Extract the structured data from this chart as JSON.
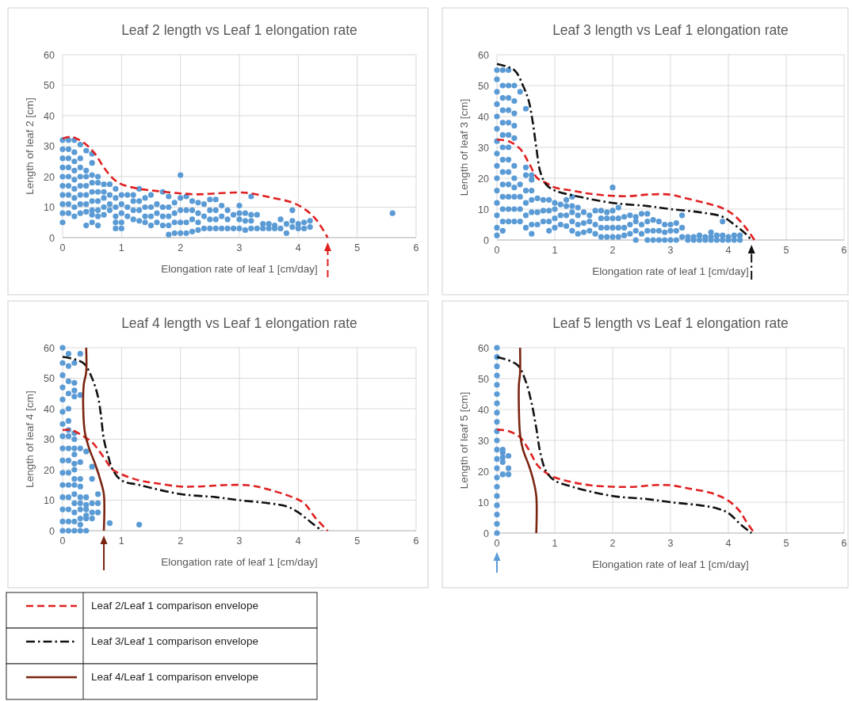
{
  "chart_data": [
    {
      "type": "scatter",
      "title": "Leaf 2 length vs Leaf 1 elongation rate",
      "xlabel": "Elongation rate of leaf 1 [cm/day]",
      "ylabel": "Length of leaf 2 [cm]",
      "xlim": [
        0,
        6
      ],
      "ylim": [
        0,
        60
      ],
      "xticks": [
        0,
        1,
        2,
        3,
        4,
        5,
        6
      ],
      "yticks": [
        0,
        10,
        20,
        30,
        40,
        50,
        60
      ],
      "grid": true,
      "series": [
        {
          "marker": "circle",
          "color": "#5b9bd5",
          "x": [
            0,
            0,
            0,
            0,
            0,
            0,
            0,
            0,
            0,
            0,
            0.1,
            0.1,
            0.1,
            0.1,
            0.1,
            0.1,
            0.1,
            0.1,
            0.1,
            0.2,
            0.2,
            0.2,
            0.2,
            0.2,
            0.2,
            0.2,
            0.2,
            0.2,
            0.3,
            0.3,
            0.3,
            0.3,
            0.3,
            0.3,
            0.3,
            0.3,
            0.4,
            0.4,
            0.4,
            0.4,
            0.4,
            0.4,
            0.4,
            0.4,
            0.5,
            0.5,
            0.5,
            0.5,
            0.5,
            0.5,
            0.5,
            0.5,
            0.5,
            0.6,
            0.6,
            0.6,
            0.6,
            0.6,
            0.6,
            0.6,
            0.7,
            0.7,
            0.7,
            0.7,
            0.7,
            0.8,
            0.8,
            0.8,
            0.8,
            0.9,
            0.9,
            0.9,
            0.9,
            0.9,
            0.9,
            1,
            1,
            1,
            1,
            1,
            1.1,
            1.1,
            1.1,
            1.2,
            1.2,
            1.2,
            1.2,
            1.3,
            1.3,
            1.3,
            1.3,
            1.4,
            1.4,
            1.4,
            1.4,
            1.5,
            1.5,
            1.5,
            1.5,
            1.6,
            1.6,
            1.6,
            1.7,
            1.7,
            1.7,
            1.7,
            1.8,
            1.8,
            1.8,
            1.8,
            1.8,
            1.9,
            1.9,
            1.9,
            1.9,
            2,
            2,
            2,
            2,
            2,
            2.1,
            2.1,
            2.1,
            2.1,
            2.2,
            2.2,
            2.2,
            2.2,
            2.3,
            2.3,
            2.3,
            2.3,
            2.4,
            2.4,
            2.4,
            2.5,
            2.5,
            2.5,
            2.5,
            2.6,
            2.6,
            2.6,
            2.6,
            2.7,
            2.7,
            2.7,
            2.8,
            2.8,
            2.8,
            2.9,
            2.9,
            3,
            3,
            3,
            3,
            3.1,
            3.1,
            3.1,
            3.2,
            3.2,
            3.2,
            3.2,
            3.3,
            3.3,
            3.4,
            3.4,
            3.5,
            3.5,
            3.6,
            3.6,
            3.7,
            3.7,
            3.8,
            3.8,
            3.9,
            3.9,
            3.9,
            4,
            4,
            4.1,
            4.1,
            4.2,
            4.2,
            5.6
          ],
          "values": [
            5,
            8,
            11,
            14,
            17,
            20,
            23,
            26,
            29,
            32,
            8,
            11,
            14,
            17,
            20,
            23,
            26,
            29,
            32,
            7,
            10,
            13,
            16,
            19,
            22,
            25,
            28,
            32,
            8,
            11,
            14,
            17,
            20,
            23,
            26,
            30.5,
            4,
            8.5,
            11,
            14,
            17,
            20,
            22,
            28.5,
            5,
            7.5,
            9,
            12,
            15,
            18,
            20.5,
            24.5,
            27.5,
            4,
            7,
            9,
            12,
            15,
            18,
            20,
            7.5,
            10,
            13,
            15,
            17.5,
            9,
            11,
            14,
            17.5,
            3,
            5,
            7,
            10,
            13,
            16,
            3,
            5,
            8,
            11,
            14,
            7,
            10,
            14,
            6,
            9,
            12,
            14,
            5.5,
            9,
            12,
            16,
            5,
            7,
            10,
            13,
            4,
            7,
            10,
            14,
            5,
            8,
            11,
            4,
            7,
            10,
            15,
            1,
            4,
            7,
            10,
            13.5,
            1.5,
            5,
            8,
            11.5,
            1.5,
            5,
            9,
            13,
            20.5,
            1.5,
            5,
            9,
            13.5,
            2,
            6,
            9,
            12,
            2.5,
            5,
            8,
            11.5,
            3,
            7,
            11,
            3,
            6,
            9,
            12.5,
            3,
            6,
            9,
            12.5,
            3,
            7,
            10.5,
            3,
            6,
            9,
            3,
            7.5,
            3,
            6,
            8,
            10.5,
            2.5,
            5.5,
            8,
            3,
            5.5,
            7.5,
            13.5,
            3,
            7.5,
            3,
            4.5,
            3,
            4.5,
            3,
            4,
            3,
            6,
            1.5,
            4.5,
            3.5,
            5.5,
            9,
            3,
            4.5,
            3,
            5,
            3.5,
            5.5,
            8
          ]
        },
        {
          "type": "line",
          "color": "#e02020",
          "line_style": "dashed",
          "x": [
            0,
            0.1,
            0.2,
            0.4,
            0.55,
            0.7,
            0.85,
            1,
            1.3,
            1.6,
            2,
            2.3,
            2.6,
            3,
            3.2,
            3.5,
            3.9,
            4.1,
            4.3,
            4.5
          ],
          "values": [
            32.5,
            33,
            32.8,
            30.5,
            27.5,
            23,
            19.5,
            17.5,
            16,
            15.3,
            14.5,
            14.2,
            14.5,
            14.8,
            14.5,
            13.3,
            11.5,
            9.5,
            6,
            0
          ]
        }
      ]
    },
    {
      "type": "scatter",
      "title": "Leaf 3 length vs Leaf 1 elongation rate",
      "xlabel": "Elongation rate of leaf 1 [cm/day]",
      "ylabel": "Length of leaf 3 [cm]",
      "xlim": [
        0,
        6
      ],
      "ylim": [
        0,
        60
      ],
      "xticks": [
        0,
        1,
        2,
        3,
        4,
        5,
        6
      ],
      "yticks": [
        0,
        10,
        20,
        30,
        40,
        50,
        60
      ],
      "grid": true,
      "series": [
        {
          "marker": "circle",
          "color": "#5b9bd5",
          "x": [
            0,
            0,
            0,
            0,
            0,
            0,
            0,
            0,
            0,
            0,
            0,
            0,
            0,
            0,
            0,
            0.1,
            0.1,
            0.1,
            0.1,
            0.1,
            0.1,
            0.1,
            0.1,
            0.1,
            0.1,
            0.1,
            0.1,
            0.1,
            0.1,
            0.2,
            0.2,
            0.2,
            0.2,
            0.2,
            0.2,
            0.2,
            0.2,
            0.2,
            0.2,
            0.2,
            0.2,
            0.2,
            0.3,
            0.3,
            0.3,
            0.3,
            0.3,
            0.3,
            0.3,
            0.3,
            0.3,
            0.3,
            0.3,
            0.4,
            0.4,
            0.4,
            0.4,
            0.4,
            0.5,
            0.5,
            0.5,
            0.5,
            0.5,
            0.5,
            0.5,
            0.6,
            0.6,
            0.6,
            0.6,
            0.6,
            0.6,
            0.6,
            0.7,
            0.7,
            0.7,
            0.8,
            0.8,
            0.8,
            0.9,
            0.9,
            0.9,
            0.9,
            1,
            1,
            1,
            1,
            1.1,
            1.1,
            1.1,
            1.2,
            1.2,
            1.2,
            1.2,
            1.3,
            1.3,
            1.3,
            1.3,
            1.3,
            1.4,
            1.4,
            1.4,
            1.4,
            1.5,
            1.5,
            1.5,
            1.6,
            1.6,
            1.6,
            1.7,
            1.7,
            1.7,
            1.8,
            1.8,
            1.8,
            1.8,
            1.9,
            1.9,
            1.9,
            1.9,
            2,
            2,
            2,
            2,
            2,
            2.1,
            2.1,
            2.1,
            2.1,
            2.2,
            2.2,
            2.2,
            2.3,
            2.3,
            2.3,
            2.4,
            2.4,
            2.4,
            2.4,
            2.5,
            2.5,
            2.5,
            2.6,
            2.6,
            2.6,
            2.6,
            2.7,
            2.7,
            2.7,
            2.8,
            2.8,
            2.8,
            2.9,
            2.9,
            2.9,
            3,
            3,
            3,
            3.1,
            3.1,
            3.1,
            3.2,
            3.2,
            3.2,
            3.3,
            3.3,
            3.4,
            3.4,
            3.5,
            3.5,
            3.6,
            3.6,
            3.7,
            3.7,
            3.7,
            3.8,
            3.8,
            3.9,
            3.9,
            3.9,
            4,
            4,
            4.1,
            4.1,
            4.2,
            4.2
          ],
          "values": [
            1.5,
            4,
            8,
            12,
            16,
            20,
            24,
            28,
            32,
            36,
            40,
            44,
            48,
            52,
            55,
            3,
            6,
            10,
            14,
            18,
            22,
            26,
            30,
            34,
            38,
            42,
            46,
            50,
            55,
            6,
            10,
            14,
            18,
            22,
            26,
            30,
            34,
            38,
            42,
            46,
            50,
            55,
            6,
            10,
            14,
            17,
            20,
            24,
            33,
            37,
            41,
            45,
            50,
            6,
            10,
            14,
            18,
            48,
            4,
            8,
            12,
            16,
            21,
            23.5,
            42.5,
            2,
            5,
            9,
            13,
            16,
            19.5,
            21,
            5,
            9,
            13.5,
            6,
            9.5,
            13,
            3,
            6,
            9.5,
            13,
            4,
            7,
            10,
            12,
            5,
            8,
            11.5,
            4.5,
            8,
            11,
            13,
            3,
            6,
            9,
            11,
            14,
            2,
            5,
            8,
            10.5,
            2.5,
            5.5,
            9,
            3,
            6,
            8,
            2,
            5,
            9.5,
            1,
            4,
            7,
            9.5,
            1,
            4,
            7,
            9,
            1,
            4,
            7,
            9.5,
            17,
            1,
            4,
            7,
            10.5,
            1.5,
            4,
            7.5,
            2,
            5,
            8,
            0,
            3,
            6,
            7.5,
            2,
            5,
            8.5,
            0,
            3,
            6,
            8.5,
            0,
            3,
            6.5,
            0,
            3,
            6,
            0,
            2.5,
            5,
            0,
            3,
            5,
            0,
            3,
            5.5,
            1,
            4,
            8,
            0,
            1,
            0,
            1,
            0,
            1.5,
            0,
            1,
            0,
            1,
            2.5,
            0,
            1.5,
            0,
            1.5,
            6,
            0,
            1,
            0,
            1.5,
            0,
            1.5
          ]
        },
        {
          "type": "line",
          "color": "#e02020",
          "line_style": "dashed",
          "x": [
            0,
            0.2,
            0.4,
            0.55,
            0.7,
            0.85,
            1,
            1.3,
            1.6,
            2,
            2.3,
            2.6,
            3,
            3.2,
            3.6,
            3.9,
            4.1,
            4.3,
            4.45
          ],
          "values": [
            32.5,
            32,
            29.5,
            25,
            20,
            18.5,
            17,
            16,
            15,
            14.3,
            14.2,
            14.7,
            14.7,
            13.8,
            12,
            10.3,
            8,
            4,
            0
          ]
        },
        {
          "type": "line",
          "color": "#111111",
          "line_style": "dashdot",
          "x": [
            0,
            0.3,
            0.45,
            0.55,
            0.62,
            0.68,
            0.75,
            0.85,
            1,
            1.3,
            2,
            2.6,
            3,
            3.5,
            3.9,
            4.1,
            4.3,
            4.4
          ],
          "values": [
            57,
            55,
            50,
            45,
            38,
            30,
            22,
            18,
            16,
            14.5,
            12,
            11,
            10,
            9,
            7.5,
            5,
            2,
            0
          ]
        }
      ]
    },
    {
      "type": "scatter",
      "title": "Leaf 4 length vs Leaf 1 elongation rate",
      "xlabel": "Elongation rate of leaf 1 [cm/day]",
      "ylabel": "Length of leaf 4 [cm]",
      "xlim": [
        0,
        6
      ],
      "ylim": [
        0,
        60
      ],
      "xticks": [
        0,
        1,
        2,
        3,
        4,
        5,
        6
      ],
      "yticks": [
        0,
        10,
        20,
        30,
        40,
        50,
        60
      ],
      "grid": true,
      "legend": "bottom",
      "series": [
        {
          "marker": "circle",
          "color": "#5b9bd5",
          "x": [
            0,
            0,
            0,
            0,
            0,
            0,
            0,
            0,
            0,
            0,
            0,
            0,
            0,
            0,
            0,
            0,
            0.1,
            0.1,
            0.1,
            0.1,
            0.1,
            0.1,
            0.1,
            0.1,
            0.1,
            0.1,
            0.1,
            0.1,
            0.1,
            0.1,
            0.1,
            0.1,
            0.2,
            0.2,
            0.2,
            0.2,
            0.2,
            0.2,
            0.2,
            0.2,
            0.2,
            0.2,
            0.2,
            0.2,
            0.2,
            0.2,
            0.2,
            0.2,
            0.2,
            0.3,
            0.3,
            0.3,
            0.3,
            0.3,
            0.3,
            0.3,
            0.3,
            0.3,
            0.3,
            0.3,
            0.3,
            0.4,
            0.4,
            0.4,
            0.4,
            0.4,
            0.4,
            0.4,
            0.5,
            0.5,
            0.5,
            0.5,
            0.5,
            0.6,
            0.6,
            0.6,
            0.8,
            1.3
          ],
          "values": [
            0,
            3,
            7,
            11,
            15,
            19,
            23,
            27,
            31,
            35,
            39,
            43,
            47,
            51,
            55,
            60,
            0,
            3,
            7,
            11,
            15,
            19,
            23,
            27,
            31,
            33,
            36,
            40,
            45,
            49,
            54,
            58,
            0,
            3,
            6,
            9,
            12,
            15,
            17,
            20,
            22,
            25,
            27,
            30,
            32,
            44,
            46,
            48.5,
            55,
            0,
            2,
            4,
            7,
            9,
            11,
            14.5,
            17,
            22.5,
            27,
            44.5,
            58,
            0,
            4,
            5,
            7,
            8.5,
            11,
            26,
            4,
            6,
            9,
            17,
            21,
            6,
            9,
            12,
            2.5,
            2
          ]
        },
        {
          "type": "line",
          "name": "Leaf 2/Leaf 1 comparison envelope",
          "color": "#e02020",
          "line_style": "dashed",
          "x": [
            0,
            0.15,
            0.35,
            0.5,
            0.7,
            0.85,
            1,
            1.3,
            1.6,
            2,
            2.3,
            2.6,
            2.8,
            3.2,
            3.5,
            3.9,
            4.1,
            4.3,
            4.5
          ],
          "values": [
            33,
            33,
            31,
            29,
            24,
            20,
            18.5,
            16.5,
            15.5,
            14.5,
            14.5,
            14.8,
            15,
            14.8,
            13.5,
            11,
            9,
            4,
            0
          ]
        },
        {
          "type": "line",
          "name": "Leaf 3/Leaf 1 comparison envelope",
          "color": "#111111",
          "line_style": "dashdot",
          "x": [
            0,
            0.35,
            0.5,
            0.6,
            0.65,
            0.7,
            0.78,
            0.85,
            1,
            1.3,
            2,
            2.6,
            3,
            3.5,
            3.8,
            4,
            4.2,
            4.4
          ],
          "values": [
            57,
            55,
            50,
            44,
            38,
            30,
            24,
            20,
            16.5,
            15,
            12,
            11,
            10,
            9,
            8,
            6,
            3,
            0
          ]
        },
        {
          "type": "line",
          "name": "Leaf 4/Leaf 1 comparison envelope",
          "color": "#7a2410",
          "line_style": "solid",
          "x": [
            0.7,
            0.7,
            0.65,
            0.55,
            0.45,
            0.38,
            0.35,
            0.36,
            0.4,
            0.4
          ],
          "values": [
            0,
            12,
            16,
            22,
            27,
            32,
            40,
            48,
            52,
            60
          ]
        }
      ]
    },
    {
      "type": "scatter",
      "title": "Leaf 5 length vs Leaf 1 elongation rate",
      "xlabel": "Elongation rate of leaf 1 [cm/day]",
      "ylabel": "Length of leaf 5 [cm]",
      "xlim": [
        0,
        6
      ],
      "ylim": [
        0,
        60
      ],
      "xticks": [
        0,
        1,
        2,
        3,
        4,
        5,
        6
      ],
      "yticks": [
        0,
        10,
        20,
        30,
        40,
        50,
        60
      ],
      "grid": true,
      "series": [
        {
          "marker": "circle",
          "color": "#5b9bd5",
          "x": [
            0,
            0,
            0,
            0,
            0,
            0,
            0,
            0,
            0,
            0,
            0,
            0,
            0,
            0,
            0,
            0,
            0,
            0,
            0,
            0,
            0,
            0.1,
            0.1,
            0.1,
            0.1,
            0.1,
            0.2,
            0.2,
            0.2
          ],
          "values": [
            0,
            3,
            6,
            9,
            12,
            15,
            18,
            21,
            24,
            27,
            30,
            33,
            36,
            39,
            42,
            45,
            48,
            51,
            54,
            57,
            60,
            19,
            23,
            24.5,
            26,
            27,
            19,
            21,
            25
          ]
        },
        {
          "type": "line",
          "color": "#e02020",
          "line_style": "dashed",
          "x": [
            0,
            0.2,
            0.4,
            0.55,
            0.7,
            0.85,
            1,
            1.3,
            1.6,
            2,
            2.4,
            2.7,
            3,
            3.3,
            3.7,
            4,
            4.2,
            4.3,
            4.45
          ],
          "values": [
            33.5,
            33,
            31,
            27,
            22,
            19.5,
            18,
            16.5,
            15.5,
            15,
            15,
            15.5,
            15.5,
            14.5,
            13,
            10.5,
            7,
            4,
            0
          ]
        },
        {
          "type": "line",
          "color": "#111111",
          "line_style": "dashdot",
          "x": [
            0,
            0.35,
            0.5,
            0.6,
            0.68,
            0.75,
            0.85,
            1,
            1.3,
            2,
            2.6,
            3,
            3.5,
            3.8,
            4,
            4.2,
            4.4
          ],
          "values": [
            57,
            54.5,
            49,
            42,
            34,
            26,
            20,
            17,
            15,
            12,
            11,
            10,
            9,
            8,
            6.5,
            3,
            0
          ]
        },
        {
          "type": "line",
          "color": "#7a2410",
          "line_style": "solid",
          "x": [
            0.68,
            0.68,
            0.63,
            0.55,
            0.45,
            0.4,
            0.38,
            0.38,
            0.4,
            0.4
          ],
          "values": [
            0,
            12,
            17,
            22,
            27,
            32,
            40,
            48,
            52,
            60
          ]
        }
      ]
    }
  ]
}
